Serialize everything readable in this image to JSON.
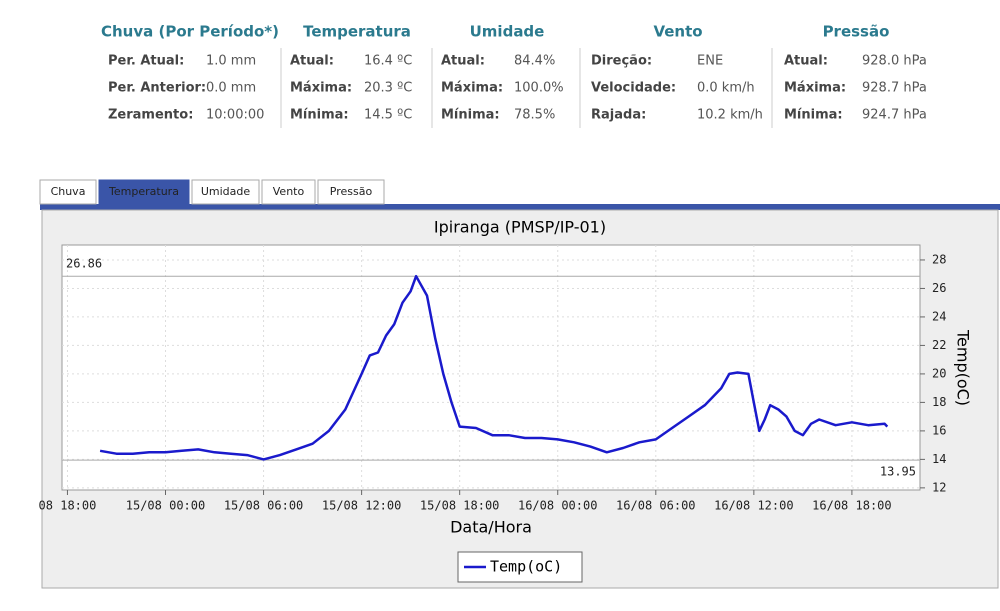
{
  "panels": [
    {
      "title": "Chuva (Por Período*)",
      "rows": [
        [
          "Per. Atual:",
          "1.0 mm"
        ],
        [
          "Per. Anterior:",
          "0.0 mm"
        ],
        [
          "Zeramento:",
          "10:00:00"
        ]
      ]
    },
    {
      "title": "Temperatura",
      "rows": [
        [
          "Atual:",
          "16.4 ºC"
        ],
        [
          "Máxima:",
          "20.3 ºC"
        ],
        [
          "Mínima:",
          "14.5 ºC"
        ]
      ]
    },
    {
      "title": "Umidade",
      "rows": [
        [
          "Atual:",
          "84.4%"
        ],
        [
          "Máxima:",
          "100.0%"
        ],
        [
          "Mínima:",
          "78.5%"
        ]
      ]
    },
    {
      "title": "Vento",
      "rows": [
        [
          "Direção:",
          "ENE"
        ],
        [
          "Velocidade:",
          "0.0 km/h"
        ],
        [
          "Rajada:",
          "10.2 km/h"
        ]
      ]
    },
    {
      "title": "Pressão",
      "rows": [
        [
          "Atual:",
          "928.0 hPa"
        ],
        [
          "Máxima:",
          "928.7 hPa"
        ],
        [
          "Mínima:",
          "924.7 hPa"
        ]
      ]
    }
  ],
  "tabs": [
    "Chuva",
    "Temperatura",
    "Umidade",
    "Vento",
    "Pressão"
  ],
  "active_tab": 1,
  "chart_data": {
    "type": "line",
    "title": "Ipiranga (PMSP/IP-01)",
    "x_label": "Data/Hora",
    "y_label": "Temp(oC)",
    "x": [
      "14/08 20:00",
      "14/08 21:00",
      "14/08 22:00",
      "14/08 23:00",
      "15/08 00:00",
      "15/08 01:00",
      "15/08 02:00",
      "15/08 03:00",
      "15/08 04:00",
      "15/08 05:00",
      "15/08 06:00",
      "15/08 07:00",
      "15/08 08:00",
      "15/08 09:00",
      "15/08 10:00",
      "15/08 11:00",
      "15/08 12:00",
      "15/08 12:30",
      "15/08 13:00",
      "15/08 13:30",
      "15/08 14:00",
      "15/08 14:30",
      "15/08 15:00",
      "15/08 15:20",
      "15/08 16:00",
      "15/08 16:30",
      "15/08 17:00",
      "15/08 17:30",
      "15/08 18:00",
      "15/08 19:00",
      "15/08 20:00",
      "15/08 21:00",
      "15/08 22:00",
      "15/08 23:00",
      "16/08 00:00",
      "16/08 01:00",
      "16/08 02:00",
      "16/08 03:00",
      "16/08 04:00",
      "16/08 05:00",
      "16/08 06:00",
      "16/08 07:00",
      "16/08 08:00",
      "16/08 09:00",
      "16/08 10:00",
      "16/08 10:30",
      "16/08 11:00",
      "16/08 11:40",
      "16/08 12:00",
      "16/08 12:20",
      "16/08 12:40",
      "16/08 13:00",
      "16/08 13:30",
      "16/08 14:00",
      "16/08 14:30",
      "16/08 15:00",
      "16/08 15:30",
      "16/08 16:00",
      "16/08 17:00",
      "16/08 18:00",
      "16/08 19:00",
      "16/08 20:00",
      "16/08 20:10"
    ],
    "series": [
      {
        "name": "Temp(oC)",
        "color": "#1a1acc",
        "values": [
          14.6,
          14.4,
          14.4,
          14.5,
          14.5,
          14.6,
          14.7,
          14.5,
          14.4,
          14.3,
          14.0,
          14.3,
          14.7,
          15.1,
          16.0,
          17.5,
          20.0,
          21.3,
          21.5,
          22.7,
          23.5,
          25.0,
          25.8,
          26.86,
          25.5,
          22.5,
          20.0,
          18.0,
          16.3,
          16.2,
          15.7,
          15.7,
          15.5,
          15.5,
          15.4,
          15.2,
          14.9,
          14.5,
          14.8,
          15.2,
          15.4,
          16.2,
          17.0,
          17.8,
          19.0,
          20.0,
          20.1,
          20.0,
          18.0,
          16.0,
          16.8,
          17.8,
          17.5,
          17.0,
          16.0,
          15.7,
          16.5,
          16.8,
          16.4,
          16.6,
          16.4,
          16.5,
          16.3
        ]
      }
    ],
    "max_line": 26.86,
    "min_line": 13.95,
    "xlim": [
      "14/08 17:40",
      "16/08 22:10"
    ],
    "xticks": [
      {
        "value": "14/08 18:00",
        "label": "08 18:00"
      },
      "15/08 00:00",
      "15/08 06:00",
      "15/08 12:00",
      "15/08 18:00",
      "16/08 00:00",
      "16/08 06:00",
      "16/08 12:00",
      "16/08 18:00"
    ],
    "ylim": [
      11.85,
      29.05
    ],
    "yticks": [
      12,
      14,
      16,
      18,
      20,
      22,
      24,
      26,
      28
    ],
    "grid": true
  }
}
